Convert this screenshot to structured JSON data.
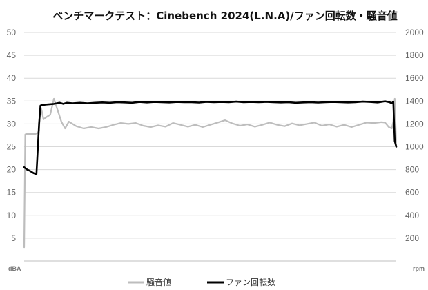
{
  "chart_data": {
    "type": "line",
    "title": "ベンチマークテスト：Cinebench 2024(L.N.A)/ファン回転数・騒音値",
    "left_axis": {
      "unit": "dBA",
      "ylim": [
        0,
        50
      ],
      "ticks": [
        5,
        10,
        15,
        20,
        25,
        30,
        35,
        40,
        45,
        50
      ]
    },
    "right_axis": {
      "unit": "rpm",
      "ylim": [
        0,
        2000
      ],
      "ticks": [
        200,
        400,
        600,
        800,
        1000,
        1200,
        1400,
        1600,
        1800,
        2000
      ]
    },
    "grid": "horizontal",
    "legend_position": "bottom",
    "x_range": [
      0,
      100
    ],
    "series": [
      {
        "name": "騒音値",
        "axis": "left",
        "color": "#bdbdbd",
        "x": [
          0,
          0.3,
          0.6,
          3,
          3.6,
          4,
          4.3,
          4.7,
          5.2,
          6,
          7,
          8,
          9,
          10,
          11,
          12,
          14,
          16,
          18,
          20,
          22,
          24,
          26,
          28,
          30,
          32,
          34,
          36,
          38,
          40,
          42,
          44,
          46,
          48,
          50,
          52,
          54,
          56,
          58,
          60,
          62,
          64,
          66,
          68,
          70,
          72,
          74,
          76,
          78,
          80,
          82,
          84,
          86,
          88,
          90,
          92,
          94,
          96,
          97,
          98,
          98.8,
          99.2,
          99.6,
          100
        ],
        "values": [
          3,
          27.7,
          27.8,
          27.8,
          28,
          28.5,
          34,
          33,
          31,
          31.5,
          32,
          35.5,
          33,
          30.5,
          29,
          30.5,
          29.5,
          29,
          29.3,
          29,
          29.3,
          29.8,
          30.2,
          30,
          30.2,
          29.6,
          29.3,
          29.7,
          29.4,
          30.2,
          29.8,
          29.4,
          29.8,
          29.3,
          29.8,
          30.3,
          30.8,
          30.1,
          29.6,
          29.9,
          29.4,
          29.8,
          30.3,
          29.8,
          29.5,
          30.1,
          29.7,
          30,
          30.3,
          29.6,
          29.9,
          29.4,
          29.8,
          29.3,
          29.8,
          30.3,
          30.2,
          30.4,
          30.3,
          29.3,
          29,
          30.5,
          35.5,
          25
        ]
      },
      {
        "name": "ファン回転数",
        "axis": "right",
        "color": "#000000",
        "x": [
          0,
          0.8,
          1.5,
          2.5,
          3.3,
          3.7,
          4.0,
          4.4,
          4.8,
          6,
          8,
          9.5,
          10.5,
          11.5,
          13,
          15,
          17,
          19,
          21,
          23,
          25,
          27,
          29,
          31,
          33,
          35,
          37,
          39,
          41,
          43,
          45,
          47,
          49,
          51,
          53,
          55,
          57,
          59,
          61,
          63,
          65,
          67,
          69,
          71,
          73,
          75,
          77,
          79,
          81,
          83,
          85,
          87,
          89,
          91,
          93,
          95,
          97,
          98.2,
          98.8,
          99.2,
          99.6,
          100
        ],
        "values": [
          820,
          800,
          790,
          770,
          760,
          1000,
          1200,
          1360,
          1365,
          1370,
          1375,
          1385,
          1375,
          1385,
          1380,
          1385,
          1380,
          1385,
          1388,
          1385,
          1390,
          1388,
          1385,
          1392,
          1388,
          1392,
          1390,
          1388,
          1392,
          1390,
          1390,
          1387,
          1393,
          1390,
          1392,
          1390,
          1395,
          1390,
          1392,
          1390,
          1393,
          1390,
          1388,
          1390,
          1385,
          1388,
          1390,
          1387,
          1390,
          1392,
          1390,
          1388,
          1390,
          1395,
          1392,
          1388,
          1398,
          1390,
          1380,
          1395,
          1050,
          1000
        ]
      }
    ]
  }
}
